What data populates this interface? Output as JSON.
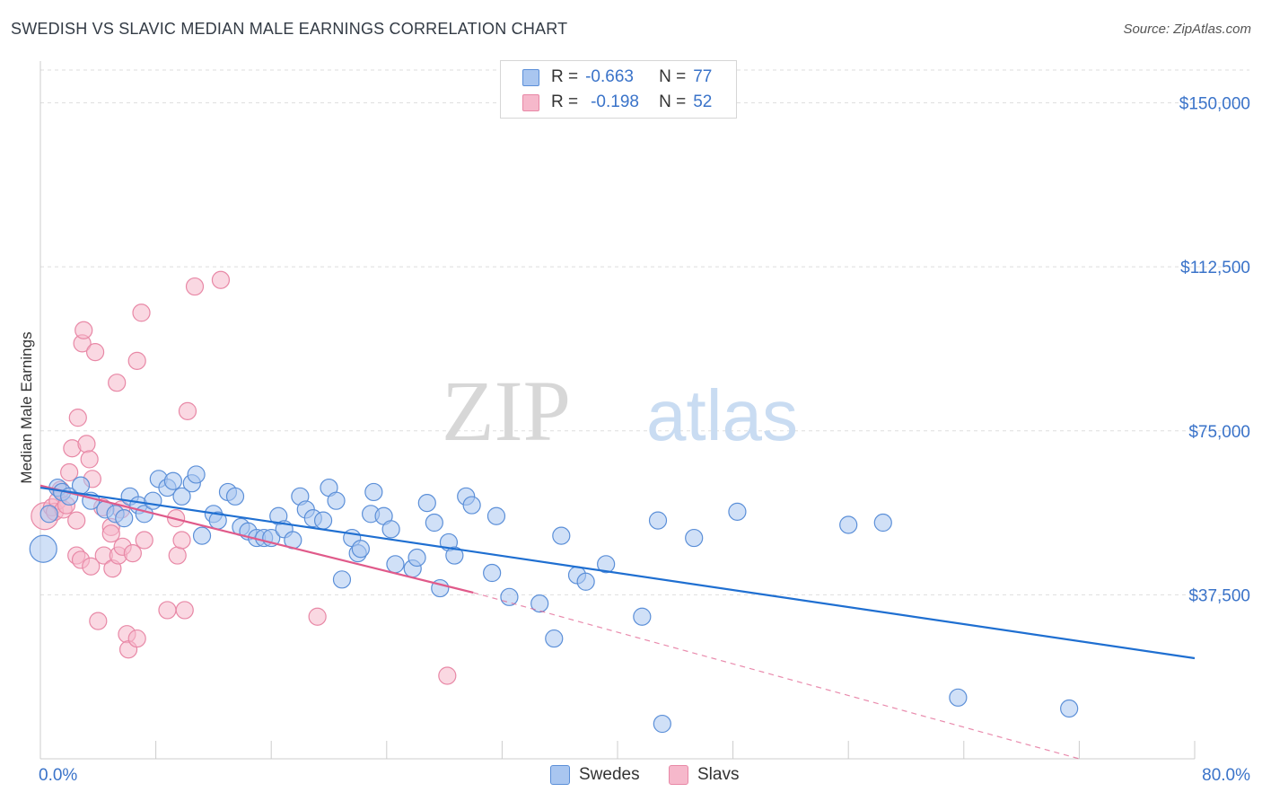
{
  "title": "SWEDISH VS SLAVIC MEDIAN MALE EARNINGS CORRELATION CHART",
  "source": "Source: ZipAtlas.com",
  "watermark": {
    "zip": "ZIP",
    "atlas": "atlas"
  },
  "colors": {
    "swedes_fill": "#a9c6f0",
    "swedes_stroke": "#5b8fd8",
    "swedes_line": "#1f6fd1",
    "slavs_fill": "#f6b8cb",
    "slavs_stroke": "#e888a6",
    "slavs_line": "#e05a8a",
    "axis_text": "#3a73c9",
    "grid": "#dedede"
  },
  "legend": {
    "rows": [
      {
        "r_label": "R =",
        "r_value": "-0.663",
        "n_label": "N =",
        "n_value": "77"
      },
      {
        "r_label": "R =",
        "r_value": "-0.198",
        "n_label": "N =",
        "n_value": "52"
      }
    ]
  },
  "bottom_legend": [
    "Swedes",
    "Slavs"
  ],
  "chart_data": {
    "type": "scatter",
    "title": "SWEDISH VS SLAVIC MEDIAN MALE EARNINGS CORRELATION CHART",
    "xlabel": "",
    "ylabel": "Median Male Earnings",
    "xlim": [
      0,
      80
    ],
    "ylim": [
      0,
      157500
    ],
    "x_tick_labels": [
      "0.0%",
      "80.0%"
    ],
    "y_ticks": [
      37500,
      75000,
      112500,
      150000
    ],
    "y_tick_labels": [
      "$37,500",
      "$75,000",
      "$112,500",
      "$150,000"
    ],
    "grid": true,
    "legend_position": "top-center",
    "series": [
      {
        "name": "Swedes",
        "r": -0.663,
        "n": 77,
        "trend": {
          "x": [
            0,
            80
          ],
          "y": [
            62000,
            23000
          ]
        },
        "points": [
          [
            0.2,
            48000,
            1
          ],
          [
            0.6,
            56000,
            1
          ],
          [
            1.2,
            62000,
            1
          ],
          [
            1.5,
            61000,
            1
          ],
          [
            2.0,
            60000,
            1
          ],
          [
            2.8,
            62500,
            1
          ],
          [
            3.5,
            59000,
            1
          ],
          [
            4.5,
            57000,
            1
          ],
          [
            5.2,
            56000,
            1
          ],
          [
            5.8,
            55000,
            1
          ],
          [
            6.2,
            60000,
            1
          ],
          [
            6.8,
            58000,
            1
          ],
          [
            7.2,
            56000,
            1
          ],
          [
            7.8,
            59000,
            1
          ],
          [
            8.2,
            64000,
            1
          ],
          [
            8.8,
            62000,
            1
          ],
          [
            9.2,
            63500,
            1
          ],
          [
            9.8,
            60000,
            1
          ],
          [
            10.5,
            63000,
            1
          ],
          [
            10.8,
            65000,
            1
          ],
          [
            11.2,
            51000,
            1
          ],
          [
            12.0,
            56000,
            1
          ],
          [
            12.3,
            54500,
            1
          ],
          [
            13.0,
            61000,
            1
          ],
          [
            13.5,
            60000,
            1
          ],
          [
            13.9,
            53000,
            1
          ],
          [
            14.4,
            52000,
            1
          ],
          [
            15.0,
            50500,
            1
          ],
          [
            15.5,
            50500,
            1
          ],
          [
            16.0,
            50500,
            1
          ],
          [
            16.5,
            55500,
            1
          ],
          [
            16.9,
            52500,
            1
          ],
          [
            17.5,
            50000,
            1
          ],
          [
            18.0,
            60000,
            1
          ],
          [
            18.4,
            57000,
            1
          ],
          [
            18.9,
            55000,
            1
          ],
          [
            19.6,
            54500,
            1
          ],
          [
            20.0,
            62000,
            1
          ],
          [
            20.5,
            59000,
            1
          ],
          [
            20.9,
            41000,
            1
          ],
          [
            21.6,
            50500,
            1
          ],
          [
            22.0,
            47000,
            1
          ],
          [
            22.2,
            48000,
            1
          ],
          [
            22.9,
            56000,
            1
          ],
          [
            23.1,
            61000,
            1
          ],
          [
            23.8,
            55500,
            1
          ],
          [
            24.3,
            52500,
            1
          ],
          [
            24.6,
            44500,
            1
          ],
          [
            25.8,
            43500,
            1
          ],
          [
            26.1,
            46000,
            1
          ],
          [
            26.8,
            58500,
            1
          ],
          [
            27.3,
            54000,
            1
          ],
          [
            27.7,
            39000,
            1
          ],
          [
            28.3,
            49500,
            1
          ],
          [
            28.7,
            46500,
            1
          ],
          [
            29.5,
            60000,
            1
          ],
          [
            29.9,
            58000,
            1
          ],
          [
            31.3,
            42500,
            1
          ],
          [
            31.6,
            55500,
            1
          ],
          [
            32.5,
            37000,
            1
          ],
          [
            34.6,
            35500,
            1
          ],
          [
            35.6,
            27500,
            1
          ],
          [
            36.1,
            51000,
            1
          ],
          [
            37.2,
            42000,
            1
          ],
          [
            37.8,
            40500,
            1
          ],
          [
            39.2,
            44500,
            1
          ],
          [
            41.7,
            32500,
            1
          ],
          [
            42.8,
            54500,
            1
          ],
          [
            43.1,
            8000,
            1
          ],
          [
            45.3,
            50500,
            1
          ],
          [
            48.3,
            56500,
            1
          ],
          [
            56.0,
            53500,
            1
          ],
          [
            58.4,
            54000,
            1
          ],
          [
            63.6,
            14000,
            1
          ],
          [
            71.3,
            11500,
            1
          ]
        ]
      },
      {
        "name": "Slavs",
        "r": -0.198,
        "n": 52,
        "trend": {
          "x": [
            0,
            30
          ],
          "y": [
            62500,
            38000
          ]
        },
        "trend_extension": {
          "x": [
            30,
            72
          ],
          "y": [
            38000,
            0
          ]
        },
        "points": [
          [
            0.3,
            55500,
            1
          ],
          [
            0.8,
            57500,
            1
          ],
          [
            1.0,
            56500,
            1
          ],
          [
            1.2,
            59000,
            1
          ],
          [
            1.4,
            61500,
            1
          ],
          [
            1.6,
            57000,
            1
          ],
          [
            1.8,
            58000,
            1
          ],
          [
            2.0,
            65500,
            1
          ],
          [
            2.2,
            71000,
            1
          ],
          [
            2.5,
            54500,
            1
          ],
          [
            2.5,
            46500,
            1
          ],
          [
            2.6,
            78000,
            1
          ],
          [
            2.8,
            45500,
            1
          ],
          [
            2.9,
            95000,
            1
          ],
          [
            3.0,
            98000,
            1
          ],
          [
            3.2,
            72000,
            1
          ],
          [
            3.4,
            68500,
            1
          ],
          [
            3.5,
            44000,
            1
          ],
          [
            3.6,
            64000,
            1
          ],
          [
            3.8,
            93000,
            1
          ],
          [
            4.0,
            31500,
            1
          ],
          [
            4.3,
            57500,
            1
          ],
          [
            4.4,
            46500,
            1
          ],
          [
            4.9,
            53000,
            1
          ],
          [
            4.9,
            51500,
            1
          ],
          [
            5.0,
            43500,
            1
          ],
          [
            5.3,
            86000,
            1
          ],
          [
            5.4,
            46500,
            1
          ],
          [
            5.6,
            57000,
            1
          ],
          [
            5.7,
            48500,
            1
          ],
          [
            6.0,
            28500,
            1
          ],
          [
            6.1,
            25000,
            1
          ],
          [
            6.4,
            47000,
            1
          ],
          [
            6.7,
            27500,
            1
          ],
          [
            6.7,
            91000,
            1
          ],
          [
            7.0,
            102000,
            1
          ],
          [
            7.2,
            50000,
            1
          ],
          [
            8.8,
            34000,
            1
          ],
          [
            9.4,
            55000,
            1
          ],
          [
            9.5,
            46500,
            1
          ],
          [
            9.8,
            50000,
            1
          ],
          [
            10.0,
            34000,
            1
          ],
          [
            10.2,
            79500,
            1
          ],
          [
            10.7,
            108000,
            1
          ],
          [
            12.5,
            109500,
            1
          ],
          [
            19.2,
            32500,
            1
          ],
          [
            28.2,
            19000,
            1
          ]
        ]
      }
    ]
  }
}
